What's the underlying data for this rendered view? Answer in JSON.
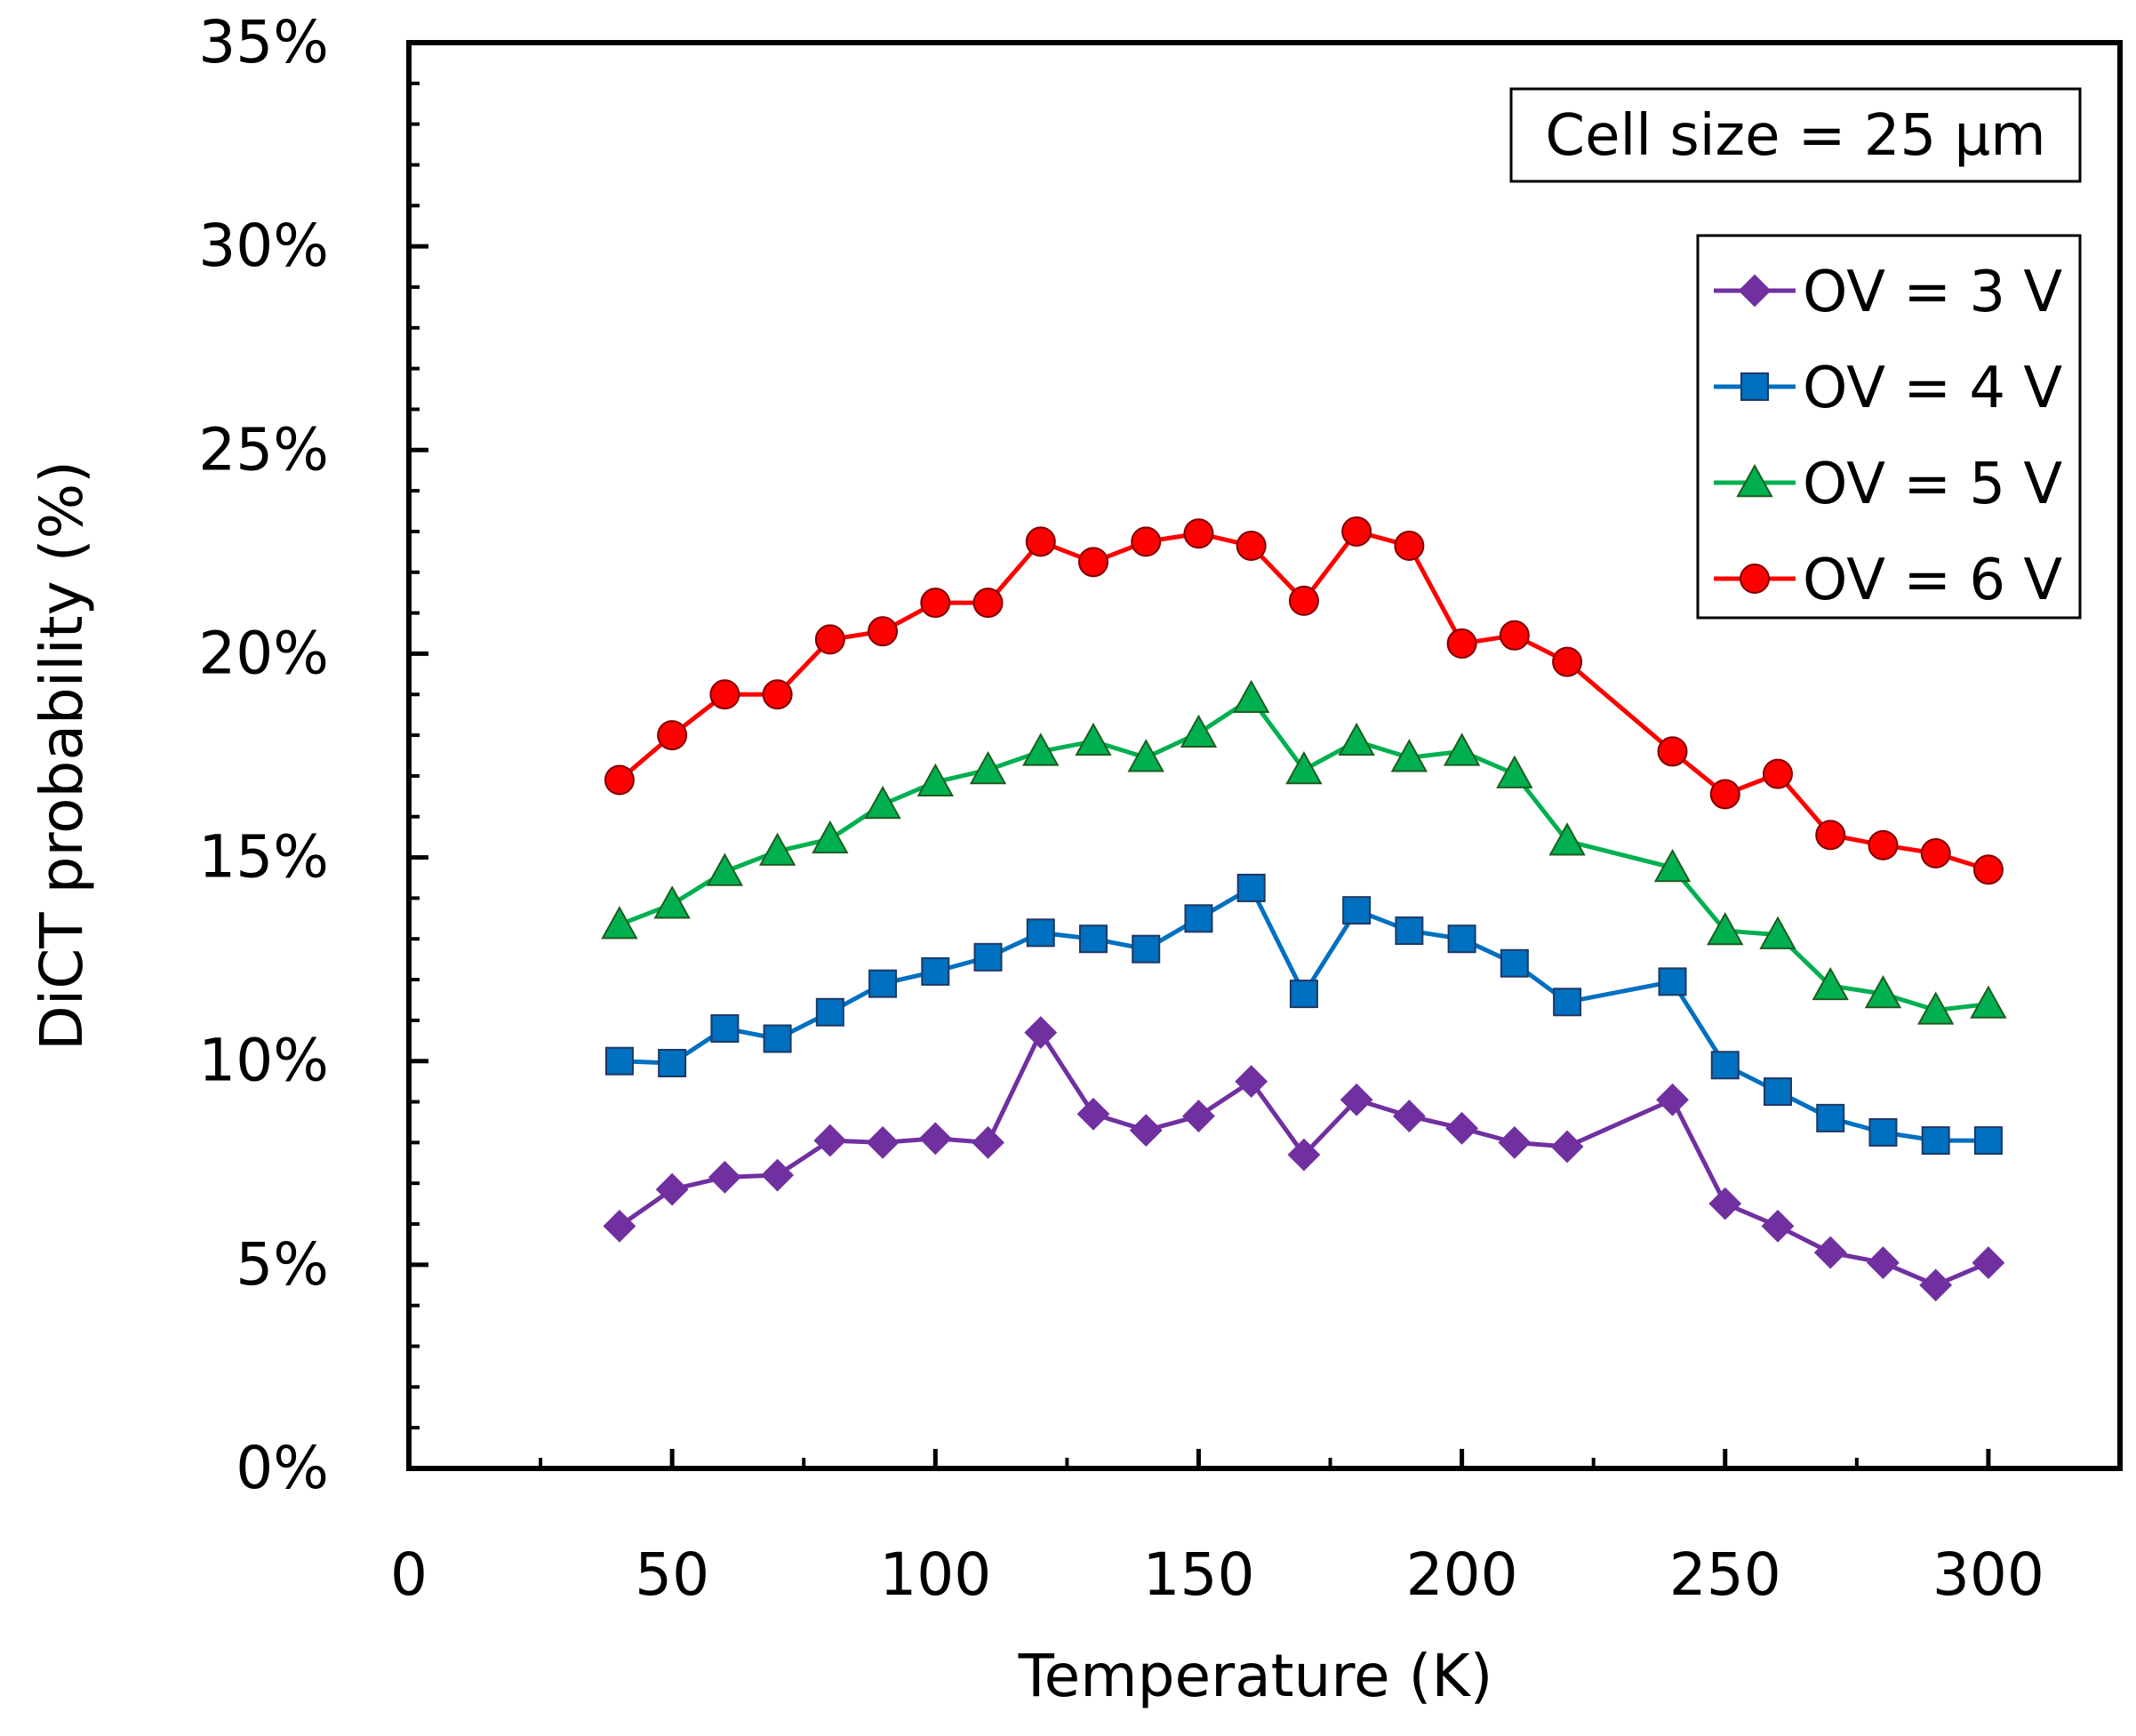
{
  "chart_data": {
    "type": "line",
    "title": "",
    "xlabel": "Temperature (K)",
    "ylabel": "DiCT probability (%)",
    "xlim": [
      0,
      325
    ],
    "ylim": [
      0,
      35
    ],
    "x_ticks": [
      0,
      50,
      100,
      150,
      200,
      250,
      300
    ],
    "x_tick_labels": [
      "0",
      "50",
      "100",
      "150",
      "200",
      "250",
      "300"
    ],
    "y_ticks": [
      0,
      5,
      10,
      15,
      20,
      25,
      30,
      35
    ],
    "y_tick_labels": [
      "0%",
      "5%",
      "10%",
      "15%",
      "20%",
      "25%",
      "30%",
      "35%"
    ],
    "annotation": "Cell size = 25 µm",
    "legend_position": "top-right",
    "x": [
      40,
      50,
      60,
      70,
      80,
      90,
      100,
      110,
      120,
      130,
      140,
      150,
      160,
      170,
      180,
      190,
      200,
      210,
      220,
      240,
      250,
      260,
      270,
      280,
      290,
      300
    ],
    "series": [
      {
        "name": "OV = 3 V",
        "color": "#7030A0",
        "marker": "diamond",
        "values": [
          5.95,
          6.85,
          7.15,
          7.2,
          8.05,
          8.0,
          8.1,
          8.0,
          10.7,
          8.7,
          8.3,
          8.65,
          9.5,
          7.7,
          9.05,
          8.65,
          8.35,
          8.0,
          7.9,
          9.05,
          6.5,
          5.95,
          5.3,
          5.05,
          4.5,
          5.05
        ]
      },
      {
        "name": "OV = 4 V",
        "color": "#0070C0",
        "marker": "square",
        "values": [
          10.0,
          9.95,
          10.8,
          10.55,
          11.2,
          11.9,
          12.2,
          12.55,
          13.15,
          13.0,
          12.75,
          13.5,
          14.25,
          11.65,
          13.7,
          13.2,
          13.0,
          12.4,
          11.45,
          11.95,
          9.9,
          9.25,
          8.6,
          8.25,
          8.05,
          8.05
        ]
      },
      {
        "name": "OV = 5 V",
        "color": "#00B050",
        "marker": "triangle",
        "values": [
          13.35,
          13.85,
          14.65,
          15.15,
          15.45,
          16.3,
          16.85,
          17.15,
          17.6,
          17.85,
          17.45,
          18.05,
          18.9,
          17.15,
          17.85,
          17.45,
          17.6,
          17.05,
          15.4,
          14.75,
          13.2,
          13.1,
          11.85,
          11.65,
          11.25,
          11.4
        ]
      },
      {
        "name": "OV = 6 V",
        "color": "#FF0000",
        "marker": "circle",
        "values": [
          16.9,
          18.0,
          19.0,
          19.0,
          20.35,
          20.55,
          21.25,
          21.25,
          22.75,
          22.25,
          22.75,
          22.95,
          22.65,
          21.3,
          23.0,
          22.65,
          20.25,
          20.45,
          19.8,
          17.6,
          16.55,
          17.05,
          15.55,
          15.3,
          15.1,
          14.7
        ]
      }
    ]
  }
}
